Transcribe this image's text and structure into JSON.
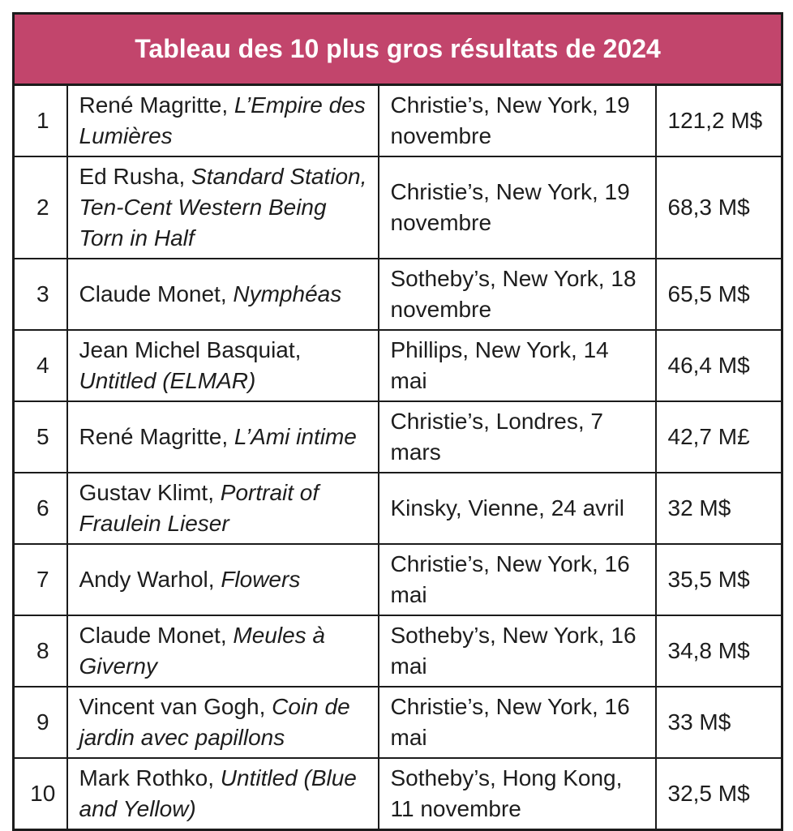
{
  "page": {
    "background": "#ffffff"
  },
  "table": {
    "title": "Tableau des 10 plus gros résultats de 2024",
    "header_bg": "#c2456c",
    "title_color": "#ffffff",
    "border_color": "#1b1b1b",
    "text_color": "#1d1d1d",
    "columns": [
      "rank",
      "artist_and_work",
      "sale_location_date",
      "price"
    ],
    "rows": [
      {
        "rank": "1",
        "artist": "René Magritte,",
        "work": "L’Empire des Lumières",
        "sale": "Christie’s, New York, 19 novembre",
        "price": "121,2 M$"
      },
      {
        "rank": "2",
        "artist": "Ed Rusha,",
        "work": "Standard Station, Ten-Cent Western Being Torn in Half",
        "sale": "Christie’s, New York, 19 novembre",
        "price": "68,3 M$"
      },
      {
        "rank": "3",
        "artist": "Claude Monet,",
        "work": "Nymphéas",
        "sale": "Sotheby’s, New York, 18 novembre",
        "price": "65,5 M$"
      },
      {
        "rank": "4",
        "artist": "Jean Michel Basquiat,",
        "work": "Untitled (ELMAR)",
        "sale": "Phillips, New York, 14 mai",
        "price": "46,4 M$"
      },
      {
        "rank": "5",
        "artist": "René Magritte,",
        "work": "L’Ami intime",
        "sale": "Christie’s, Londres, 7 mars",
        "price": "42,7 M£"
      },
      {
        "rank": "6",
        "artist": "Gustav Klimt,",
        "work": "Portrait of Fraulein Lieser",
        "sale": "Kinsky, Vienne, 24 avril",
        "price": "32 M$"
      },
      {
        "rank": "7",
        "artist": "Andy Warhol,",
        "work": "Flowers",
        "sale": "Christie’s, New York, 16 mai",
        "price": "35,5 M$"
      },
      {
        "rank": "8",
        "artist": "Claude Monet,",
        "work": "Meules à Giverny",
        "sale": "Sotheby’s, New York, 16 mai",
        "price": "34,8 M$"
      },
      {
        "rank": "9",
        "artist": "Vincent van Gogh,",
        "work": "Coin de jardin avec papillons",
        "sale": "Christie’s, New York, 16 mai",
        "price": "33 M$"
      },
      {
        "rank": "10",
        "artist": "Mark Rothko,",
        "work": "Untitled (Blue and Yellow)",
        "sale": "Sotheby’s, Hong Kong, 11 novembre",
        "price": "32,5 M$"
      }
    ]
  }
}
